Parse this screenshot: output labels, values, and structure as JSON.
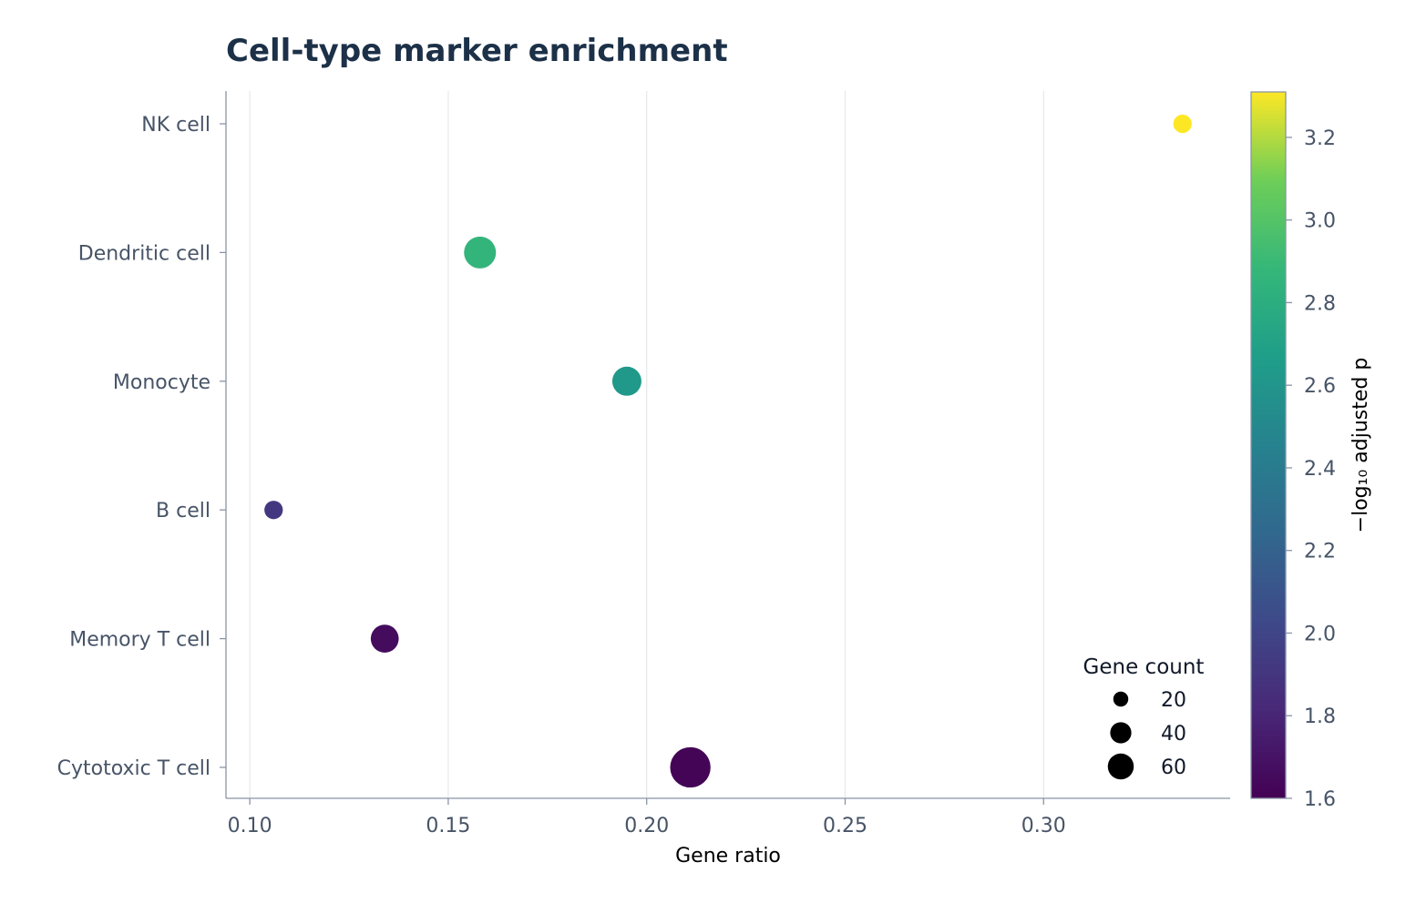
{
  "chart_data": {
    "type": "scatter",
    "title": "Cell-type marker enrichment",
    "xlabel": "Gene ratio",
    "ylabel": "",
    "xlim": [
      0.094,
      0.347
    ],
    "x_ticks": [
      "0.10",
      "0.15",
      "0.20",
      "0.25",
      "0.30"
    ],
    "x_tick_values": [
      0.1,
      0.15,
      0.2,
      0.25,
      0.3
    ],
    "categories": [
      "NK cell",
      "Dendritic cell",
      "Monocyte",
      "B cell",
      "Memory T cell",
      "Cytotoxic T cell"
    ],
    "points": [
      {
        "category": "NK cell",
        "x": 0.335,
        "gene_count": 10,
        "neg_log10_p": 3.31
      },
      {
        "category": "Dendritic cell",
        "x": 0.158,
        "gene_count": 30,
        "neg_log10_p": 2.86
      },
      {
        "category": "Monocyte",
        "x": 0.195,
        "gene_count": 25,
        "neg_log10_p": 2.63
      },
      {
        "category": "B cell",
        "x": 0.106,
        "gene_count": 10,
        "neg_log10_p": 1.92
      },
      {
        "category": "Memory T cell",
        "x": 0.134,
        "gene_count": 23,
        "neg_log10_p": 1.66
      },
      {
        "category": "Cytotoxic T cell",
        "x": 0.211,
        "gene_count": 48,
        "neg_log10_p": 1.62
      }
    ],
    "grid": "vertical",
    "colorbar": {
      "label": "−log₁₀ adjusted p",
      "colormap": "viridis",
      "range": [
        1.6,
        3.31
      ],
      "ticks": [
        "1.6",
        "1.8",
        "2.0",
        "2.2",
        "2.4",
        "2.6",
        "2.8",
        "3.0",
        "3.2"
      ],
      "tick_values": [
        1.6,
        1.8,
        2.0,
        2.2,
        2.4,
        2.6,
        2.8,
        3.0,
        3.2
      ]
    },
    "size_legend": {
      "title": "Gene count",
      "placement": "lower-right",
      "entries": [
        {
          "label": "20",
          "value": 20
        },
        {
          "label": "40",
          "value": 40
        },
        {
          "label": "60",
          "value": 60
        }
      ]
    }
  }
}
